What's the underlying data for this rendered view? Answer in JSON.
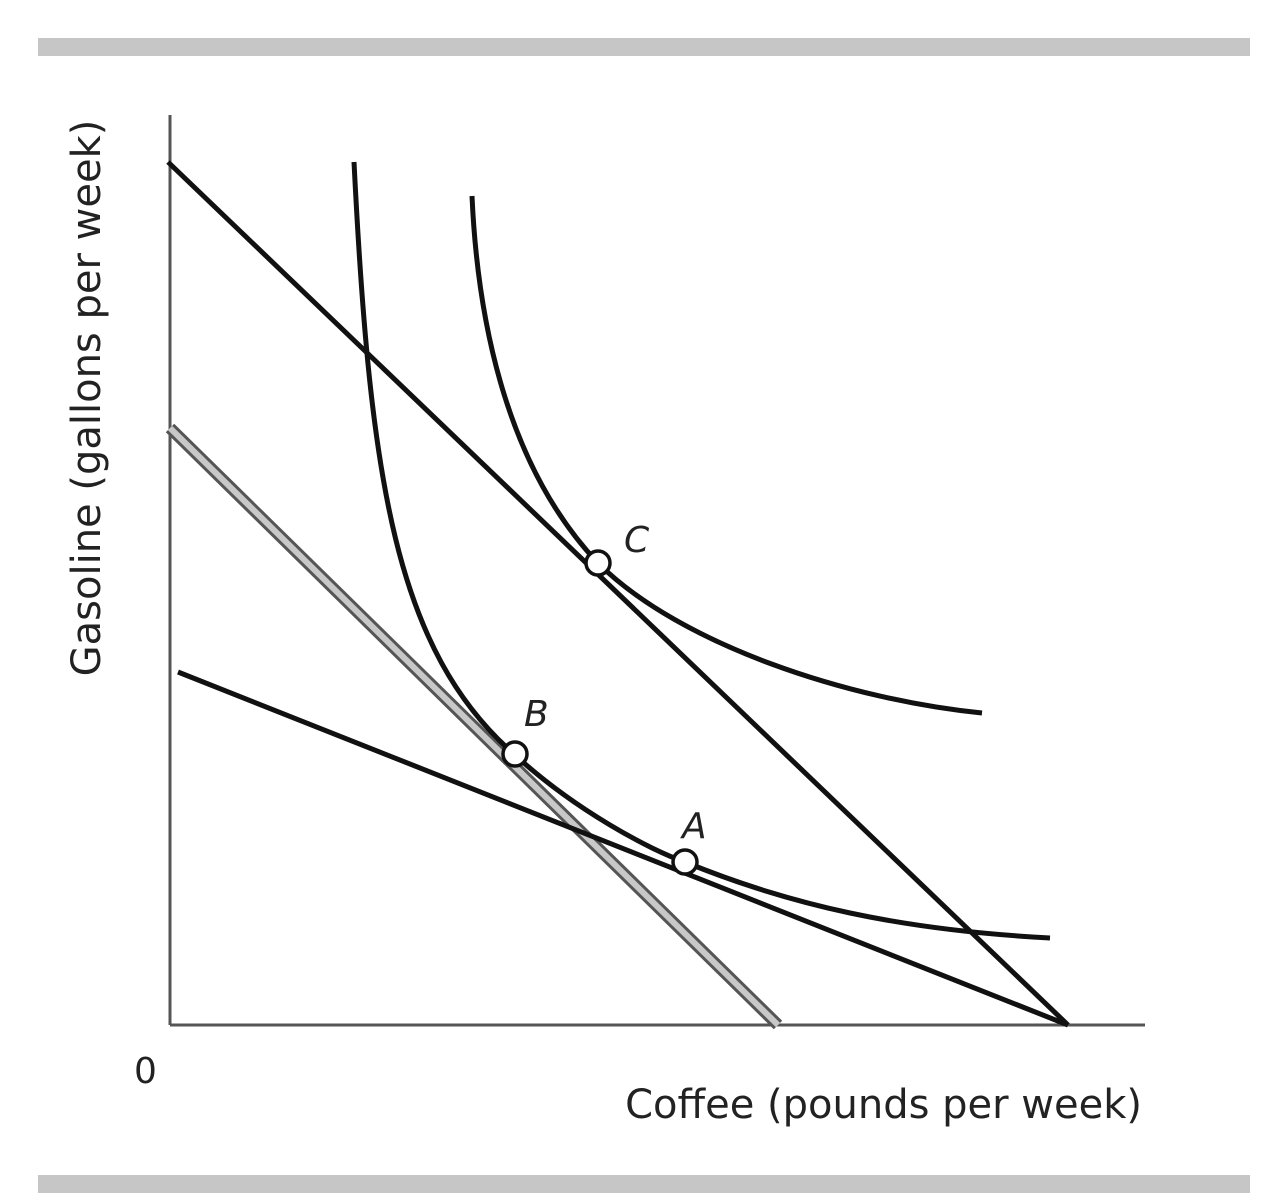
{
  "axes": {
    "origin_label": "0",
    "x_label": "Coffee (pounds per week)",
    "y_label": "Gasoline (gallons per week)"
  },
  "points": {
    "a": "A",
    "b": "B",
    "c": "C"
  },
  "colors": {
    "ink": "#111111",
    "rule": "#c6c6c6",
    "grey_line": "#c8c8c8"
  }
}
